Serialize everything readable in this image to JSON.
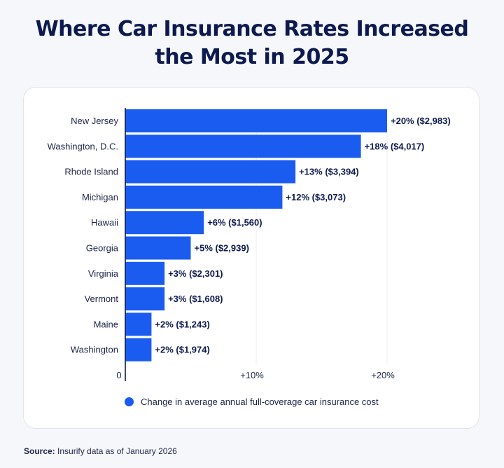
{
  "title": {
    "line1": "Where Car Insurance Rates Increased",
    "line2": "the Most in 2025"
  },
  "source": {
    "label": "Source:",
    "text": "Insurify data as of January 2026"
  },
  "colors": {
    "bar": "#1a5cf0",
    "title": "#0d1a4f",
    "text": "#1b2448"
  },
  "chart_data": {
    "type": "bar",
    "orientation": "horizontal",
    "categories": [
      "New Jersey",
      "Washington, D.C.",
      "Rhode Island",
      "Michigan",
      "Hawaii",
      "Georgia",
      "Virginia",
      "Vermont",
      "Maine",
      "Washington"
    ],
    "series": [
      {
        "name": "Change in average annual full-coverage car insurance cost",
        "values": [
          20,
          18,
          13,
          12,
          6,
          5,
          3,
          3,
          2,
          2
        ]
      }
    ],
    "data_labels": [
      "+20% ($2,983)",
      "+18% ($4,017)",
      "+13% ($3,394)",
      "+12% ($3,073)",
      "+6% ($1,560)",
      "+5% ($2,939)",
      "+3% ($2,301)",
      "+3% ($1,608)",
      "+2% ($1,243)",
      "+2% ($1,974)"
    ],
    "x_ticks": [
      {
        "value": 0,
        "label": "0"
      },
      {
        "value": 10,
        "label": "+10%"
      },
      {
        "value": 20,
        "label": "+20%"
      }
    ],
    "xlim": [
      0,
      20
    ],
    "grid": true,
    "legend_position": "bottom"
  }
}
